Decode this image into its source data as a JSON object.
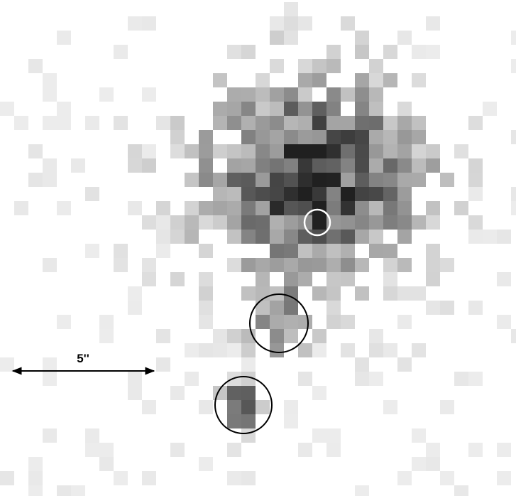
{
  "scale_bar": {
    "label": "5''"
  }
}
